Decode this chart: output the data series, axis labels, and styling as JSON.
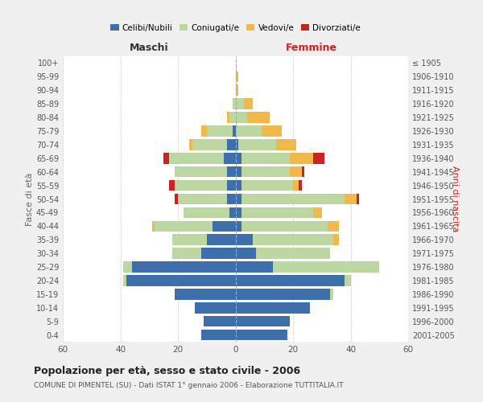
{
  "age_groups": [
    "0-4",
    "5-9",
    "10-14",
    "15-19",
    "20-24",
    "25-29",
    "30-34",
    "35-39",
    "40-44",
    "45-49",
    "50-54",
    "55-59",
    "60-64",
    "65-69",
    "70-74",
    "75-79",
    "80-84",
    "85-89",
    "90-94",
    "95-99",
    "100+"
  ],
  "birth_years": [
    "2001-2005",
    "1996-2000",
    "1991-1995",
    "1986-1990",
    "1981-1985",
    "1976-1980",
    "1971-1975",
    "1966-1970",
    "1961-1965",
    "1956-1960",
    "1951-1955",
    "1946-1950",
    "1941-1945",
    "1936-1940",
    "1931-1935",
    "1926-1930",
    "1921-1925",
    "1916-1920",
    "1911-1915",
    "1906-1910",
    "≤ 1905"
  ],
  "males": {
    "celibi": [
      12,
      11,
      14,
      21,
      38,
      36,
      12,
      10,
      8,
      2,
      3,
      3,
      3,
      4,
      3,
      1,
      0,
      0,
      0,
      0,
      0
    ],
    "coniugati": [
      0,
      0,
      0,
      0,
      1,
      3,
      10,
      12,
      20,
      16,
      17,
      18,
      18,
      19,
      12,
      9,
      2,
      1,
      0,
      0,
      0
    ],
    "vedovi": [
      0,
      0,
      0,
      0,
      0,
      0,
      0,
      0,
      1,
      0,
      0,
      0,
      0,
      0,
      1,
      2,
      1,
      0,
      0,
      0,
      0
    ],
    "divorziati": [
      0,
      0,
      0,
      0,
      0,
      0,
      0,
      0,
      0,
      0,
      1,
      2,
      0,
      2,
      0,
      0,
      0,
      0,
      0,
      0,
      0
    ]
  },
  "females": {
    "nubili": [
      18,
      19,
      26,
      33,
      38,
      13,
      7,
      6,
      2,
      2,
      2,
      2,
      2,
      2,
      1,
      0,
      0,
      0,
      0,
      0,
      0
    ],
    "coniugate": [
      0,
      0,
      0,
      1,
      2,
      37,
      26,
      28,
      30,
      25,
      36,
      18,
      17,
      17,
      13,
      9,
      4,
      3,
      0,
      0,
      0
    ],
    "vedove": [
      0,
      0,
      0,
      0,
      0,
      0,
      0,
      2,
      4,
      3,
      4,
      2,
      4,
      8,
      7,
      7,
      8,
      3,
      1,
      1,
      0
    ],
    "divorziate": [
      0,
      0,
      0,
      0,
      0,
      0,
      0,
      0,
      0,
      0,
      1,
      1,
      1,
      4,
      0,
      0,
      0,
      0,
      0,
      0,
      0
    ]
  },
  "colors": {
    "celibi": "#3d6faa",
    "coniugati": "#bdd7a3",
    "vedovi": "#f0b94a",
    "divorziati": "#cc2222"
  },
  "title": "Popolazione per età, sesso e stato civile - 2006",
  "subtitle": "COMUNE DI PIMENTEL (SU) - Dati ISTAT 1° gennaio 2006 - Elaborazione TUTTITALIA.IT",
  "xlabel_left": "Maschi",
  "xlabel_right": "Femmine",
  "ylabel_left": "Fasce di età",
  "ylabel_right": "Anni di nascita",
  "xlim": 60,
  "bg_color": "#f0f0f0",
  "plot_bg_color": "#ffffff",
  "grid_color": "#cccccc"
}
